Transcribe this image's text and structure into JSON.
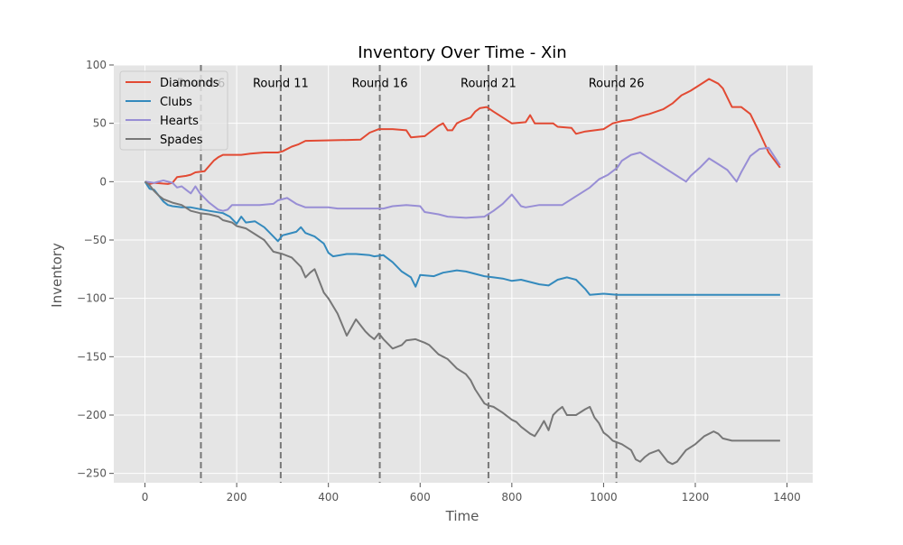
{
  "chart_data": {
    "type": "line",
    "title": "Inventory Over Time - Xin",
    "xlabel": "Time",
    "ylabel": "Inventory",
    "xlim": [
      -68,
      1456
    ],
    "ylim": [
      -258,
      100
    ],
    "xticks": [
      0,
      200,
      400,
      600,
      800,
      1000,
      1200,
      1400
    ],
    "yticks": [
      -250,
      -200,
      -150,
      -100,
      -50,
      0,
      50,
      100
    ],
    "grid": true,
    "legend_position": "top-left",
    "colors": {
      "plot_background": "#e5e5e5",
      "grid": "#ffffff",
      "vline": "#777777"
    },
    "round_markers": [
      {
        "x": 122,
        "label": "Round 6"
      },
      {
        "x": 296,
        "label": "Round 11"
      },
      {
        "x": 512,
        "label": "Round 16"
      },
      {
        "x": 749,
        "label": "Round 21"
      },
      {
        "x": 1028,
        "label": "Round 26"
      }
    ],
    "series": [
      {
        "name": "Diamonds",
        "color": "#e24a33",
        "points": [
          [
            0,
            0
          ],
          [
            10,
            -2
          ],
          [
            20,
            -1
          ],
          [
            50,
            -2
          ],
          [
            60,
            -1
          ],
          [
            70,
            4
          ],
          [
            90,
            5
          ],
          [
            100,
            6
          ],
          [
            110,
            8
          ],
          [
            130,
            9
          ],
          [
            150,
            18
          ],
          [
            160,
            21
          ],
          [
            170,
            23
          ],
          [
            210,
            23
          ],
          [
            230,
            24
          ],
          [
            260,
            25
          ],
          [
            290,
            25
          ],
          [
            300,
            26
          ],
          [
            320,
            30
          ],
          [
            335,
            32
          ],
          [
            350,
            35
          ],
          [
            470,
            36
          ],
          [
            490,
            42
          ],
          [
            510,
            45
          ],
          [
            540,
            45
          ],
          [
            570,
            44
          ],
          [
            580,
            38
          ],
          [
            610,
            39
          ],
          [
            620,
            42
          ],
          [
            640,
            48
          ],
          [
            650,
            50
          ],
          [
            660,
            44
          ],
          [
            670,
            44
          ],
          [
            680,
            50
          ],
          [
            690,
            52
          ],
          [
            710,
            55
          ],
          [
            720,
            60
          ],
          [
            730,
            63
          ],
          [
            745,
            64
          ],
          [
            760,
            60
          ],
          [
            780,
            55
          ],
          [
            800,
            50
          ],
          [
            830,
            51
          ],
          [
            840,
            57
          ],
          [
            850,
            50
          ],
          [
            890,
            50
          ],
          [
            900,
            47
          ],
          [
            930,
            46
          ],
          [
            940,
            41
          ],
          [
            960,
            43
          ],
          [
            1000,
            45
          ],
          [
            1020,
            50
          ],
          [
            1040,
            52
          ],
          [
            1060,
            53
          ],
          [
            1080,
            56
          ],
          [
            1100,
            58
          ],
          [
            1130,
            62
          ],
          [
            1150,
            67
          ],
          [
            1170,
            74
          ],
          [
            1190,
            78
          ],
          [
            1210,
            83
          ],
          [
            1230,
            88
          ],
          [
            1250,
            84
          ],
          [
            1260,
            80
          ],
          [
            1280,
            64
          ],
          [
            1300,
            64
          ],
          [
            1320,
            58
          ],
          [
            1340,
            42
          ],
          [
            1360,
            25
          ],
          [
            1385,
            12
          ]
        ]
      },
      {
        "name": "Clubs",
        "color": "#348abd",
        "points": [
          [
            0,
            0
          ],
          [
            10,
            -6
          ],
          [
            20,
            -7
          ],
          [
            30,
            -12
          ],
          [
            40,
            -17
          ],
          [
            50,
            -20
          ],
          [
            60,
            -21
          ],
          [
            80,
            -22
          ],
          [
            100,
            -22
          ],
          [
            140,
            -25
          ],
          [
            170,
            -27
          ],
          [
            185,
            -30
          ],
          [
            200,
            -36
          ],
          [
            210,
            -30
          ],
          [
            220,
            -35
          ],
          [
            240,
            -34
          ],
          [
            260,
            -39
          ],
          [
            270,
            -43
          ],
          [
            280,
            -47
          ],
          [
            290,
            -51
          ],
          [
            300,
            -46
          ],
          [
            310,
            -45
          ],
          [
            330,
            -43
          ],
          [
            340,
            -39
          ],
          [
            350,
            -44
          ],
          [
            370,
            -47
          ],
          [
            380,
            -50
          ],
          [
            390,
            -53
          ],
          [
            400,
            -61
          ],
          [
            410,
            -64
          ],
          [
            440,
            -62
          ],
          [
            460,
            -62
          ],
          [
            490,
            -63
          ],
          [
            500,
            -64
          ],
          [
            520,
            -63
          ],
          [
            540,
            -69
          ],
          [
            560,
            -77
          ],
          [
            580,
            -82
          ],
          [
            590,
            -90
          ],
          [
            600,
            -80
          ],
          [
            630,
            -81
          ],
          [
            650,
            -78
          ],
          [
            680,
            -76
          ],
          [
            700,
            -77
          ],
          [
            720,
            -79
          ],
          [
            740,
            -81
          ],
          [
            760,
            -82
          ],
          [
            780,
            -83
          ],
          [
            800,
            -85
          ],
          [
            820,
            -84
          ],
          [
            860,
            -88
          ],
          [
            880,
            -89
          ],
          [
            900,
            -84
          ],
          [
            920,
            -82
          ],
          [
            940,
            -84
          ],
          [
            960,
            -92
          ],
          [
            970,
            -97
          ],
          [
            1000,
            -96
          ],
          [
            1030,
            -97
          ],
          [
            1385,
            -97
          ]
        ]
      },
      {
        "name": "Hearts",
        "color": "#988ed5",
        "points": [
          [
            0,
            0
          ],
          [
            20,
            -1
          ],
          [
            40,
            1
          ],
          [
            60,
            -1
          ],
          [
            70,
            -5
          ],
          [
            80,
            -4
          ],
          [
            90,
            -7
          ],
          [
            100,
            -10
          ],
          [
            110,
            -4
          ],
          [
            120,
            -10
          ],
          [
            140,
            -18
          ],
          [
            160,
            -24
          ],
          [
            170,
            -25
          ],
          [
            180,
            -24
          ],
          [
            190,
            -20
          ],
          [
            210,
            -20
          ],
          [
            250,
            -20
          ],
          [
            280,
            -19
          ],
          [
            290,
            -16
          ],
          [
            310,
            -14
          ],
          [
            330,
            -19
          ],
          [
            350,
            -22
          ],
          [
            400,
            -22
          ],
          [
            420,
            -23
          ],
          [
            500,
            -23
          ],
          [
            520,
            -23
          ],
          [
            540,
            -21
          ],
          [
            570,
            -20
          ],
          [
            600,
            -21
          ],
          [
            610,
            -26
          ],
          [
            640,
            -28
          ],
          [
            660,
            -30
          ],
          [
            700,
            -31
          ],
          [
            740,
            -30
          ],
          [
            760,
            -25
          ],
          [
            780,
            -19
          ],
          [
            800,
            -11
          ],
          [
            810,
            -16
          ],
          [
            820,
            -21
          ],
          [
            830,
            -22
          ],
          [
            860,
            -20
          ],
          [
            910,
            -20
          ],
          [
            930,
            -15
          ],
          [
            950,
            -10
          ],
          [
            970,
            -5
          ],
          [
            990,
            2
          ],
          [
            1010,
            6
          ],
          [
            1030,
            12
          ],
          [
            1040,
            18
          ],
          [
            1060,
            23
          ],
          [
            1080,
            25
          ],
          [
            1100,
            20
          ],
          [
            1120,
            15
          ],
          [
            1140,
            10
          ],
          [
            1160,
            5
          ],
          [
            1180,
            0
          ],
          [
            1190,
            5
          ],
          [
            1210,
            12
          ],
          [
            1230,
            20
          ],
          [
            1250,
            15
          ],
          [
            1270,
            10
          ],
          [
            1290,
            0
          ],
          [
            1300,
            8
          ],
          [
            1320,
            22
          ],
          [
            1340,
            28
          ],
          [
            1360,
            29
          ],
          [
            1385,
            14
          ]
        ]
      },
      {
        "name": "Spades",
        "color": "#777777",
        "points": [
          [
            0,
            0
          ],
          [
            10,
            -3
          ],
          [
            20,
            -8
          ],
          [
            30,
            -12
          ],
          [
            40,
            -15
          ],
          [
            60,
            -18
          ],
          [
            80,
            -20
          ],
          [
            100,
            -25
          ],
          [
            120,
            -27
          ],
          [
            140,
            -28
          ],
          [
            160,
            -30
          ],
          [
            170,
            -33
          ],
          [
            190,
            -35
          ],
          [
            200,
            -38
          ],
          [
            220,
            -40
          ],
          [
            240,
            -45
          ],
          [
            260,
            -50
          ],
          [
            280,
            -60
          ],
          [
            300,
            -62
          ],
          [
            320,
            -65
          ],
          [
            340,
            -73
          ],
          [
            350,
            -82
          ],
          [
            360,
            -78
          ],
          [
            370,
            -75
          ],
          [
            380,
            -85
          ],
          [
            390,
            -95
          ],
          [
            400,
            -100
          ],
          [
            420,
            -113
          ],
          [
            440,
            -132
          ],
          [
            450,
            -125
          ],
          [
            460,
            -118
          ],
          [
            470,
            -123
          ],
          [
            480,
            -128
          ],
          [
            490,
            -132
          ],
          [
            500,
            -135
          ],
          [
            510,
            -130
          ],
          [
            520,
            -135
          ],
          [
            540,
            -143
          ],
          [
            560,
            -140
          ],
          [
            570,
            -136
          ],
          [
            590,
            -135
          ],
          [
            610,
            -138
          ],
          [
            620,
            -140
          ],
          [
            640,
            -148
          ],
          [
            660,
            -152
          ],
          [
            680,
            -160
          ],
          [
            700,
            -165
          ],
          [
            710,
            -170
          ],
          [
            720,
            -178
          ],
          [
            740,
            -190
          ],
          [
            750,
            -192
          ],
          [
            760,
            -193
          ],
          [
            780,
            -198
          ],
          [
            800,
            -204
          ],
          [
            810,
            -206
          ],
          [
            820,
            -210
          ],
          [
            840,
            -216
          ],
          [
            850,
            -218
          ],
          [
            860,
            -212
          ],
          [
            870,
            -205
          ],
          [
            880,
            -213
          ],
          [
            890,
            -200
          ],
          [
            900,
            -196
          ],
          [
            910,
            -193
          ],
          [
            920,
            -200
          ],
          [
            940,
            -200
          ],
          [
            960,
            -195
          ],
          [
            970,
            -193
          ],
          [
            980,
            -202
          ],
          [
            990,
            -207
          ],
          [
            1000,
            -215
          ],
          [
            1010,
            -218
          ],
          [
            1020,
            -222
          ],
          [
            1040,
            -225
          ],
          [
            1060,
            -230
          ],
          [
            1070,
            -238
          ],
          [
            1080,
            -240
          ],
          [
            1090,
            -236
          ],
          [
            1100,
            -233
          ],
          [
            1120,
            -230
          ],
          [
            1140,
            -240
          ],
          [
            1150,
            -242
          ],
          [
            1160,
            -240
          ],
          [
            1180,
            -230
          ],
          [
            1200,
            -225
          ],
          [
            1220,
            -218
          ],
          [
            1240,
            -214
          ],
          [
            1250,
            -216
          ],
          [
            1260,
            -220
          ],
          [
            1280,
            -222
          ],
          [
            1385,
            -222
          ]
        ]
      }
    ]
  }
}
